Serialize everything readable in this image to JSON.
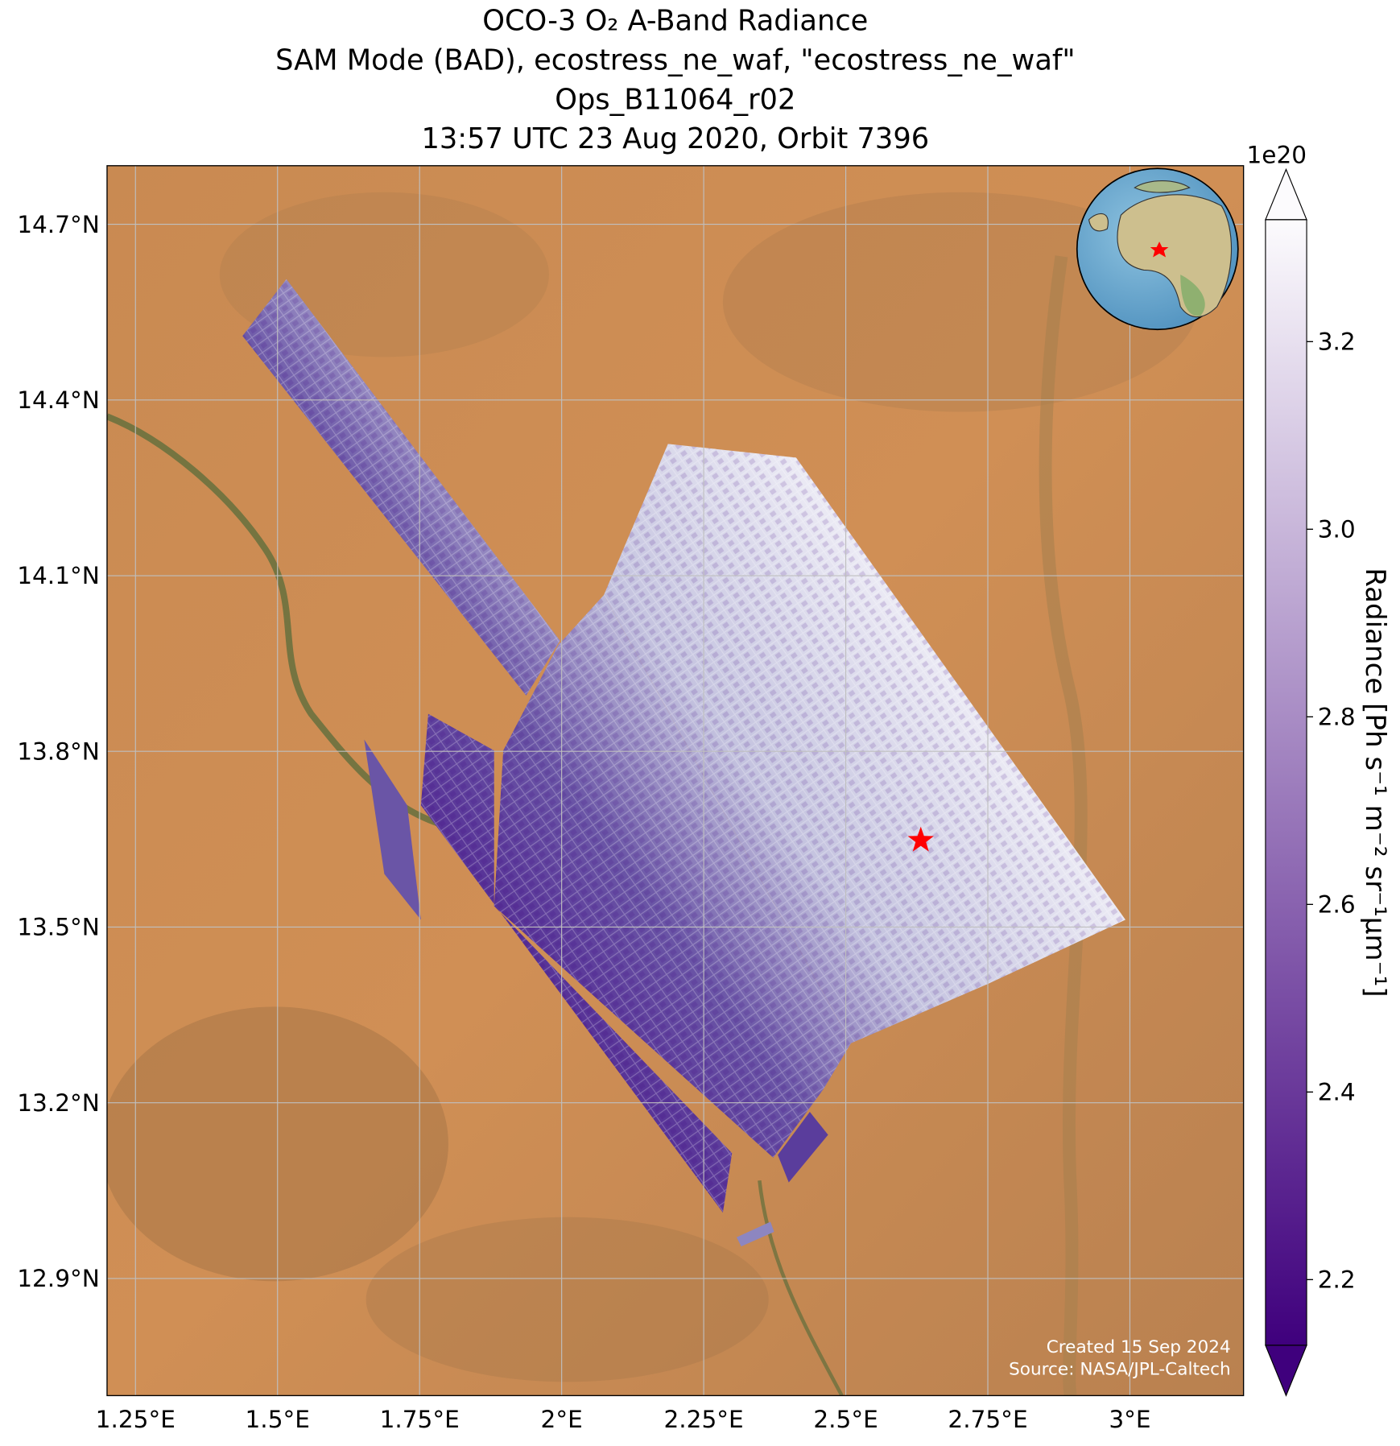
{
  "chart_data": {
    "type": "map",
    "title": [
      "OCO-3 O₂ A-Band Radiance",
      "SAM Mode (BAD), ecostress_ne_waf, \"ecostress_ne_waf\"",
      "Ops_B11064_r02",
      "13:57 UTC 23 Aug 2020, Orbit 7396"
    ],
    "xlim": [
      1.2,
      3.2
    ],
    "ylim": [
      12.7,
      14.8
    ],
    "xticks": [
      {
        "value": 1.25,
        "label": "1.25°E"
      },
      {
        "value": 1.5,
        "label": "1.5°E"
      },
      {
        "value": 1.75,
        "label": "1.75°E"
      },
      {
        "value": 2,
        "label": "2°E"
      },
      {
        "value": 2.25,
        "label": "2.25°E"
      },
      {
        "value": 2.5,
        "label": "2.5°E"
      },
      {
        "value": 2.75,
        "label": "2.75°E"
      },
      {
        "value": 3,
        "label": "3°E"
      }
    ],
    "yticks": [
      {
        "value": 14.7,
        "label": "14.7°N"
      },
      {
        "value": 14.4,
        "label": "14.4°N"
      },
      {
        "value": 14.1,
        "label": "14.1°N"
      },
      {
        "value": 13.8,
        "label": "13.8°N"
      },
      {
        "value": 13.5,
        "label": "13.5°N"
      },
      {
        "value": 13.2,
        "label": "13.2°N"
      },
      {
        "value": 12.9,
        "label": "12.9°N"
      }
    ],
    "grid": true,
    "colorbar": {
      "label": "Radiance [Ph s⁻¹ m⁻² sr⁻¹μm⁻¹]",
      "offset_label": "1e20",
      "lim": [
        2.13,
        3.33
      ],
      "ticks": [
        2.2,
        2.4,
        2.6,
        2.8,
        3.0,
        3.2
      ],
      "colors": [
        "#3f007d",
        "#fcfbfd"
      ]
    },
    "target": {
      "lon": 2.632,
      "lat": 13.648,
      "color": "#ff0000"
    },
    "credits": [
      "Created 15 Sep 2024",
      "Source: NASA/JPL-Caltech"
    ]
  }
}
